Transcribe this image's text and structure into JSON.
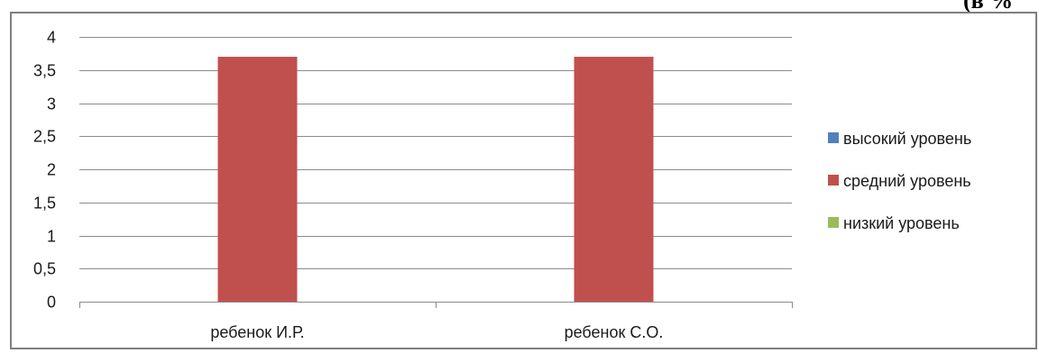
{
  "page": {
    "header_fragment": "(в %"
  },
  "chart_data": {
    "type": "bar",
    "categories": [
      "ребенок И.Р.",
      "ребенок С.О."
    ],
    "series": [
      {
        "name": "высокий уровень",
        "color": "#4f81bd",
        "values": [
          0,
          0
        ]
      },
      {
        "name": "средний уровень",
        "color": "#c0504d",
        "values": [
          3.7,
          3.7
        ]
      },
      {
        "name": "низкий уровень",
        "color": "#9bbb59",
        "values": [
          0,
          0
        ]
      }
    ],
    "ylim": [
      0,
      4
    ],
    "yticks": [
      0,
      0.5,
      1,
      1.5,
      2,
      2.5,
      3,
      3.5,
      4
    ],
    "ytick_labels": [
      "0",
      "0,5",
      "1",
      "1,5",
      "2",
      "2,5",
      "3",
      "3,5",
      "4"
    ],
    "grid": true,
    "legend_position": "right",
    "title": "",
    "xlabel": "",
    "ylabel": ""
  }
}
